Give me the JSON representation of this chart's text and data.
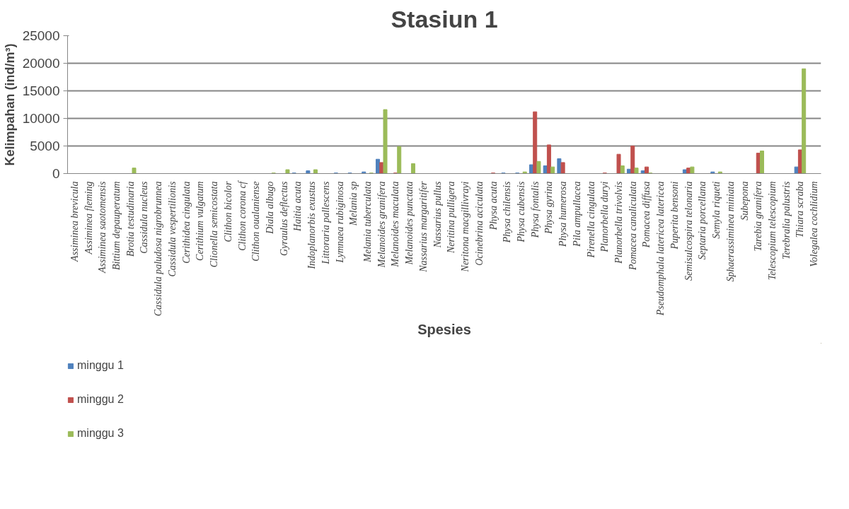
{
  "chart_data": {
    "type": "bar",
    "title": "Stasiun 1",
    "xlabel": "Spesies",
    "ylabel": "Kelimpahan (ind/m³)",
    "categories": [
      "Assiminea brevicula",
      "Assiminea fleming",
      "Assiminea saotomensis",
      "Bittium depauperatum",
      "Brotia testudinaria",
      "Cassidula nucleus",
      "Cassidula paludosa nigrobrunnea",
      "Cassidula vespertilionis",
      "Cerithidea cingulata",
      "Cerithium vulgatum",
      "Clionella semicostata",
      "Clithon bicolor",
      "Clithon corona cf",
      "Clithon oualaniense",
      "Diala albugo",
      "Gyraulus deflectus",
      "Haitia acuta",
      "Indoplanorbis exustus",
      "Littoraria pallescens",
      "Lymnaea rubiginosa",
      "Melania sp",
      "Melania tuberculata",
      "Melanoides granifera",
      "Melanoides maculata",
      "Melanoides punctata",
      "Nassarius margaritifer",
      "Nassarius pullus",
      "Neritina pulligera",
      "Neritona macgillivrayi",
      "Ocinebrina aciculata",
      "Physa acuta",
      "Physa chilensis",
      "Physa cubensis",
      "Physa fontalis",
      "Physa gyrina",
      "Physa humerosa",
      "Pila ampullacea",
      "Pirenella cingulata",
      "Planorbella duryi",
      "Planorbella trivolvis",
      "Pomacea canaliculata",
      "Pomacea diffusa",
      "Pseudomphala latericea latericea",
      "Puperita bensoni",
      "Semisulcospira telonaria",
      "Septaria porcellana",
      "Semyla riqueti",
      "Sphaerassiminea miniata",
      "Subepona",
      "Tarebia granifera",
      "Telescopium telescopium",
      "Terebralia palustris",
      "Thiara scraba",
      "Volegalea cochlidium"
    ],
    "series": [
      {
        "name": "minggu 1",
        "color": "#4f81bd",
        "values": [
          null,
          null,
          null,
          null,
          null,
          null,
          null,
          null,
          null,
          null,
          null,
          null,
          null,
          null,
          null,
          null,
          100,
          500,
          null,
          100,
          100,
          300,
          2600,
          null,
          null,
          null,
          null,
          null,
          null,
          null,
          null,
          100,
          100,
          1600,
          1400,
          2700,
          null,
          null,
          null,
          null,
          800,
          500,
          null,
          null,
          700,
          null,
          300,
          null,
          null,
          null,
          null,
          null,
          1200,
          null
        ]
      },
      {
        "name": "minggu 2",
        "color": "#c0504d",
        "values": [
          null,
          null,
          null,
          null,
          null,
          null,
          null,
          null,
          null,
          null,
          null,
          null,
          null,
          null,
          null,
          null,
          null,
          null,
          null,
          null,
          null,
          null,
          2000,
          100,
          null,
          null,
          null,
          null,
          null,
          null,
          100,
          null,
          null,
          11200,
          5200,
          2000,
          null,
          null,
          100,
          3500,
          5000,
          1200,
          null,
          null,
          1000,
          null,
          null,
          null,
          null,
          3700,
          null,
          null,
          4300,
          null
        ]
      },
      {
        "name": "minggu 3",
        "color": "#9bbb59",
        "values": [
          null,
          null,
          null,
          null,
          1000,
          null,
          null,
          null,
          null,
          null,
          null,
          null,
          null,
          null,
          100,
          700,
          null,
          700,
          null,
          null,
          null,
          100,
          11600,
          4900,
          1800,
          null,
          null,
          null,
          null,
          null,
          null,
          null,
          300,
          2200,
          1200,
          null,
          null,
          null,
          null,
          1400,
          1000,
          100,
          null,
          null,
          1200,
          null,
          300,
          null,
          null,
          4100,
          null,
          null,
          19000,
          null
        ]
      }
    ],
    "ylim": [
      0,
      25000
    ],
    "yticks": [
      0,
      5000,
      10000,
      15000,
      20000,
      25000
    ],
    "grid": "y",
    "legend": "bottom left"
  }
}
